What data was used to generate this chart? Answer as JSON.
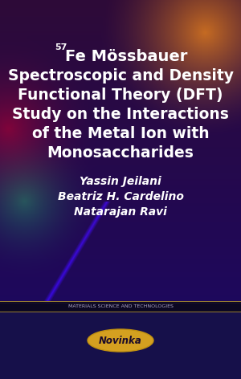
{
  "title_line2": "Spectroscopic and Density",
  "title_line3": "Functional Theory (DFT)",
  "title_line4": "Study on the Interactions",
  "title_line5": "of the Metal Ion with",
  "title_line6": "Monosaccharides",
  "author1": "Yassin Jeilani",
  "author2": "Beatriz H. Cardelino",
  "author3": "Natarajan Ravi",
  "series_label": "MATERIALS SCIENCE AND TECHNOLOGIES",
  "publisher": "Novinka",
  "superscript_text": "57",
  "fe_text": "Fe Mössbauer"
}
